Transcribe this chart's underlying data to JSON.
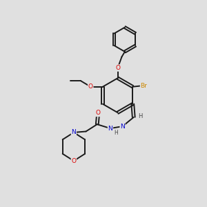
{
  "bg_color": "#e0e0e0",
  "bond_color": "#1a1a1a",
  "atom_colors": {
    "O": "#dd0000",
    "N": "#0000cc",
    "Br": "#cc8800",
    "C": "#1a1a1a",
    "H": "#444444"
  }
}
